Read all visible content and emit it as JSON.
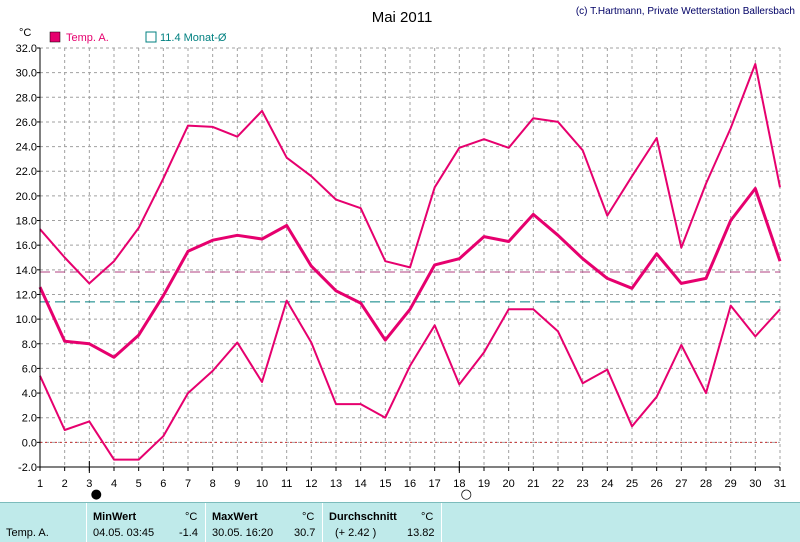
{
  "chart_data": {
    "type": "line",
    "title": "Mai 2011",
    "credit": "(c) T.Hartmann, Private Wetterstation Ballersbach",
    "ylabel": "°C",
    "ylim": [
      -2.0,
      32.0
    ],
    "yticks": [
      -2.0,
      0.0,
      2.0,
      4.0,
      6.0,
      8.0,
      10.0,
      12.0,
      14.0,
      16.0,
      18.0,
      20.0,
      22.0,
      24.0,
      26.0,
      28.0,
      30.0,
      32.0
    ],
    "ytick_labels": [
      "-2.0",
      "0.0",
      "2.0",
      "4.0",
      "6.0",
      "8.0",
      "10.0",
      "12.0",
      "14.0",
      "16.0",
      "18.0",
      "20.0",
      "22.0",
      "24.0",
      "26.0",
      "28.0",
      "30.0",
      "32.0"
    ],
    "x": [
      1,
      2,
      3,
      4,
      5,
      6,
      7,
      8,
      9,
      10,
      11,
      12,
      13,
      14,
      15,
      16,
      17,
      18,
      19,
      20,
      21,
      22,
      23,
      24,
      25,
      26,
      27,
      28,
      29,
      30,
      31
    ],
    "xlim": [
      1,
      31
    ],
    "grid": true,
    "legend": [
      {
        "label": "Temp. A.",
        "color": "#e6006e",
        "marker": "filled-square"
      },
      {
        "label": "11.4 Monat-Ø",
        "color": "#008080",
        "marker": "open-square"
      }
    ],
    "series": [
      {
        "values": [
          17.3,
          15.0,
          12.9,
          14.7,
          17.4,
          21.4,
          25.7,
          25.6,
          24.8,
          26.9,
          23.1,
          21.6,
          19.7,
          19.0,
          14.7,
          14.2,
          20.7,
          23.9,
          24.6,
          23.9,
          26.3,
          26.0,
          23.7,
          18.4,
          21.6,
          24.7,
          15.8,
          21.0,
          25.5,
          30.7,
          20.7
        ],
        "color": "#e6006e",
        "width": 2
      },
      {
        "values": [
          12.6,
          8.2,
          8.0,
          6.9,
          8.7,
          11.9,
          15.5,
          16.4,
          16.8,
          16.5,
          17.6,
          14.3,
          12.3,
          11.3,
          8.3,
          10.8,
          14.4,
          14.9,
          16.7,
          16.3,
          18.5,
          16.8,
          14.9,
          13.3,
          12.5,
          15.3,
          12.9,
          13.3,
          18.0,
          20.6,
          14.7
        ],
        "color": "#e6006e",
        "width": 3
      },
      {
        "values": [
          5.4,
          1.0,
          1.7,
          -1.4,
          -1.4,
          0.5,
          4.0,
          5.8,
          8.1,
          4.9,
          11.5,
          8.1,
          3.1,
          3.1,
          2.0,
          6.2,
          9.5,
          4.7,
          7.3,
          10.8,
          10.8,
          9.0,
          4.8,
          5.9,
          1.3,
          3.7,
          7.9,
          4.0,
          11.1,
          8.6,
          10.8
        ],
        "color": "#e6006e",
        "width": 2
      }
    ],
    "reference_lines": [
      {
        "value": 13.82,
        "color": "#b04080",
        "style": "dashed"
      },
      {
        "value": 11.4,
        "color": "#008080",
        "style": "dashed"
      },
      {
        "value": 0.0,
        "color": "#cc3333",
        "style": "dotted"
      }
    ],
    "moon_phases": [
      {
        "day": 3,
        "symbol": "new-moon",
        "glyph": "●"
      },
      {
        "day": 18,
        "symbol": "full-moon",
        "glyph": "○"
      }
    ]
  },
  "panel": {
    "row_label": "Temp. A.",
    "min": {
      "header": "MinWert",
      "unit": "°C",
      "datetime": "04.05.  03:45",
      "value": "-1.4"
    },
    "max": {
      "header": "MaxWert",
      "unit": "°C",
      "datetime": "30.05.  16:20",
      "value": "30.7"
    },
    "avg": {
      "header": "Durchschnitt",
      "unit": "°C",
      "deviation": "(+ 2.42 )",
      "value": "13.82"
    }
  }
}
